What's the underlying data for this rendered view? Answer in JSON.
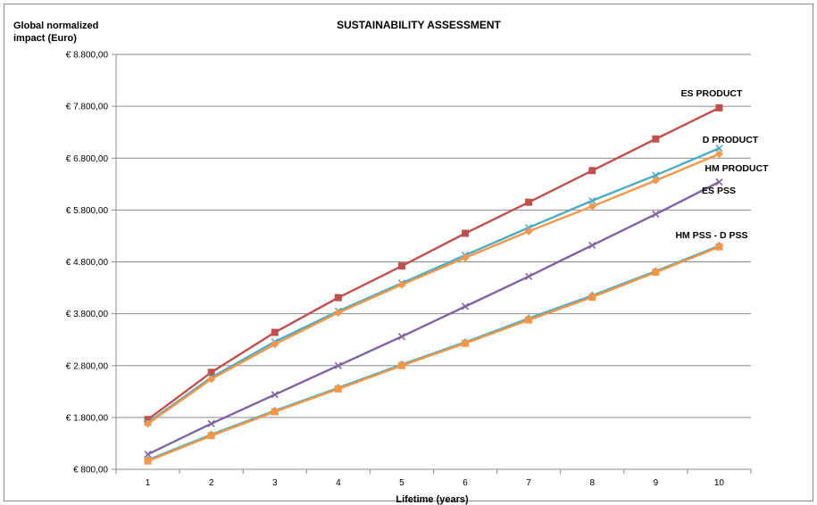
{
  "chart_data": {
    "type": "line",
    "title": "SUSTAINABILITY ASSESSMENT",
    "ylabel_line1": "Global normalized",
    "ylabel_line2": "impact (Euro)",
    "xlabel": "Lifetime (years)",
    "categories": [
      1,
      2,
      3,
      4,
      5,
      6,
      7,
      8,
      9,
      10
    ],
    "ylim": [
      800,
      8800
    ],
    "y_ticks": [
      800,
      1800,
      2800,
      3800,
      4800,
      5800,
      6800,
      7800,
      8800
    ],
    "y_tick_labels": [
      "€ 800,00",
      "€ 1.800,00",
      "€ 2.800,00",
      "€ 3.800,00",
      "€ 4.800,00",
      "€ 5.800,00",
      "€ 6.800,00",
      "€ 7.800,00",
      "€ 8.800,00"
    ],
    "grid": "horizontal",
    "series": [
      {
        "color": "#c0504d",
        "marker": "square",
        "values": [
          1760,
          2670,
          3440,
          4110,
          4720,
          5350,
          5950,
          6560,
          7170,
          7770
        ]
      },
      {
        "color": "#4bacc6",
        "marker": "x",
        "values": [
          1700,
          2570,
          3260,
          3850,
          4390,
          4930,
          5460,
          5980,
          6470,
          6990
        ]
      },
      {
        "color": "#f79646",
        "marker": "diamond",
        "values": [
          1680,
          2540,
          3210,
          3820,
          4360,
          4880,
          5390,
          5870,
          6370,
          6880
        ]
      },
      {
        "color": "#8064a2",
        "marker": "x",
        "values": [
          1090,
          1680,
          2240,
          2800,
          3360,
          3940,
          4520,
          5120,
          5720,
          6340
        ]
      },
      {
        "color": "#4bacc6",
        "marker": "diamond",
        "values": [
          980,
          1470,
          1930,
          2370,
          2820,
          3250,
          3710,
          4150,
          4620,
          5110
        ]
      },
      {
        "color": "#f79646",
        "marker": "square",
        "values": [
          960,
          1450,
          1910,
          2350,
          2800,
          3230,
          3680,
          4120,
          4600,
          5090
        ]
      }
    ],
    "annotations": [
      {
        "text": "ES PRODUCT"
      },
      {
        "text": "D PRODUCT"
      },
      {
        "text": "HM PRODUCT"
      },
      {
        "text": "ES PSS"
      },
      {
        "text": "HM PSS - D PSS"
      }
    ]
  }
}
